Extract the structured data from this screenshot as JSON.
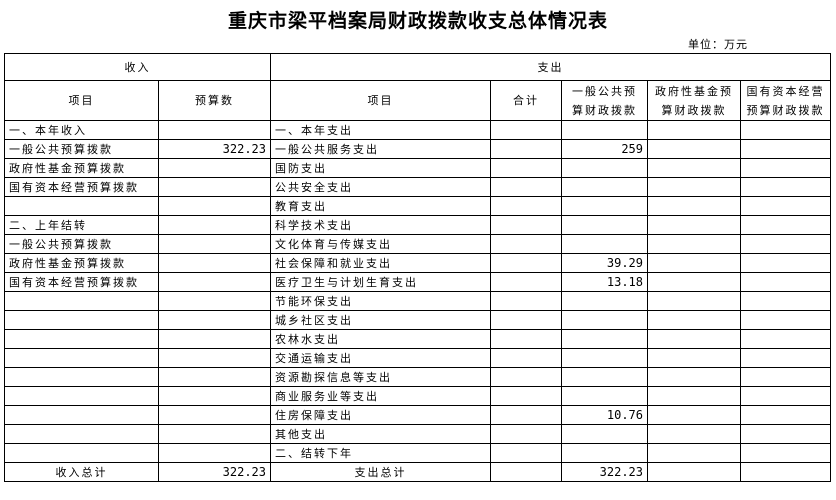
{
  "title": "重庆市梁平档案局财政拨款收支总体情况表",
  "unit": "单位：万元",
  "header": {
    "income": "收入",
    "expense": "支出",
    "item": "项目",
    "budget": "预算数",
    "exp_item": "项目",
    "total": "合计",
    "general": "一般公共预算财政拨款",
    "fund": "政府性基金预算财政拨款",
    "state": "国有资本经营预算财政拨款"
  },
  "rows": [
    {
      "income_item": "一、本年收入",
      "income_value": "",
      "exp_item": "一、本年支出",
      "total": "",
      "general": "",
      "fund": "",
      "state": ""
    },
    {
      "income_item": "一般公共预算拨款",
      "income_value": "322.23",
      "exp_item": "一般公共服务支出",
      "total": "",
      "general": "259",
      "fund": "",
      "state": ""
    },
    {
      "income_item": "政府性基金预算拨款",
      "income_value": "",
      "exp_item": "国防支出",
      "total": "",
      "general": "",
      "fund": "",
      "state": ""
    },
    {
      "income_item": "国有资本经营预算拨款",
      "income_value": "",
      "exp_item": "公共安全支出",
      "total": "",
      "general": "",
      "fund": "",
      "state": ""
    },
    {
      "income_item": "",
      "income_value": "",
      "exp_item": "教育支出",
      "total": "",
      "general": "",
      "fund": "",
      "state": ""
    },
    {
      "income_item": "二、上年结转",
      "income_value": "",
      "exp_item": "科学技术支出",
      "total": "",
      "general": "",
      "fund": "",
      "state": ""
    },
    {
      "income_item": "一般公共预算拨款",
      "income_value": "",
      "exp_item": "文化体育与传媒支出",
      "total": "",
      "general": "",
      "fund": "",
      "state": ""
    },
    {
      "income_item": "政府性基金预算拨款",
      "income_value": "",
      "exp_item": "社会保障和就业支出",
      "total": "",
      "general": "39.29",
      "fund": "",
      "state": ""
    },
    {
      "income_item": "国有资本经营预算拨款",
      "income_value": "",
      "exp_item": "医疗卫生与计划生育支出",
      "total": "",
      "general": "13.18",
      "fund": "",
      "state": ""
    },
    {
      "income_item": "",
      "income_value": "",
      "exp_item": "节能环保支出",
      "total": "",
      "general": "",
      "fund": "",
      "state": ""
    },
    {
      "income_item": "",
      "income_value": "",
      "exp_item": "城乡社区支出",
      "total": "",
      "general": "",
      "fund": "",
      "state": ""
    },
    {
      "income_item": "",
      "income_value": "",
      "exp_item": "农林水支出",
      "total": "",
      "general": "",
      "fund": "",
      "state": ""
    },
    {
      "income_item": "",
      "income_value": "",
      "exp_item": "交通运输支出",
      "total": "",
      "general": "",
      "fund": "",
      "state": ""
    },
    {
      "income_item": "",
      "income_value": "",
      "exp_item": "资源勘探信息等支出",
      "total": "",
      "general": "",
      "fund": "",
      "state": ""
    },
    {
      "income_item": "",
      "income_value": "",
      "exp_item": "商业服务业等支出",
      "total": "",
      "general": "",
      "fund": "",
      "state": ""
    },
    {
      "income_item": "",
      "income_value": "",
      "exp_item": "住房保障支出",
      "total": "",
      "general": "10.76",
      "fund": "",
      "state": ""
    },
    {
      "income_item": "",
      "income_value": "",
      "exp_item": "其他支出",
      "total": "",
      "general": "",
      "fund": "",
      "state": ""
    },
    {
      "income_item": "",
      "income_value": "",
      "exp_item": "二、结转下年",
      "total": "",
      "general": "",
      "fund": "",
      "state": ""
    }
  ],
  "totals": {
    "income_label": "收入总计",
    "income_value": "322.23",
    "exp_label": "支出总计",
    "total": "",
    "general": "322.23",
    "fund": "",
    "state": ""
  }
}
